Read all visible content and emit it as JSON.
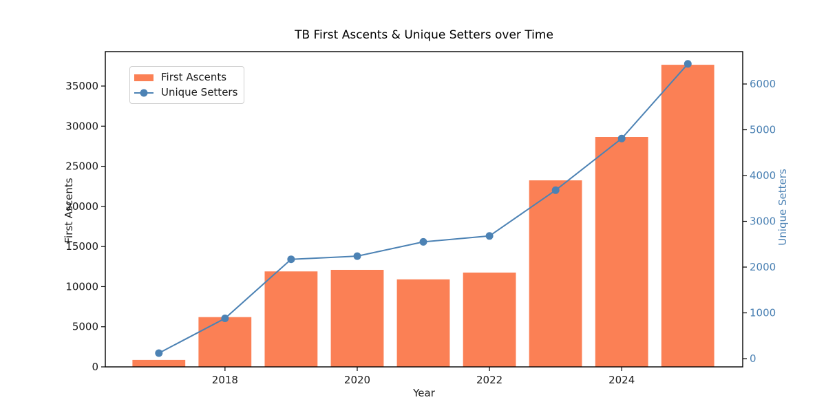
{
  "chart_data": {
    "type": "bar+line",
    "title": "TB First Ascents & Unique Setters over Time",
    "xlabel": "Year",
    "categories": [
      2017,
      2018,
      2019,
      2020,
      2021,
      2022,
      2023,
      2024,
      2025
    ],
    "series": [
      {
        "name": "First Ascents",
        "type": "bar",
        "axis": "left",
        "color": "#FB8055",
        "values": [
          870,
          6200,
          11900,
          12100,
          10900,
          11750,
          23250,
          28650,
          37650
        ]
      },
      {
        "name": "Unique Setters",
        "type": "line",
        "axis": "right",
        "color": "#4C82B4",
        "marker": "circle",
        "values": [
          120,
          880,
          2170,
          2240,
          2550,
          2680,
          3680,
          4810,
          6440
        ]
      }
    ],
    "x_ticks": [
      2018,
      2020,
      2022,
      2024
    ],
    "xlim": [
      2016.19,
      2025.83
    ],
    "bar_width": 0.8,
    "left_axis": {
      "label": "First Ascents",
      "ticks": [
        0,
        5000,
        10000,
        15000,
        20000,
        25000,
        30000,
        35000
      ],
      "lim": [
        0,
        39290
      ],
      "color": "#1a1a1a"
    },
    "right_axis": {
      "label": "Unique Setters",
      "ticks": [
        0,
        1000,
        2000,
        3000,
        4000,
        5000,
        6000
      ],
      "lim": [
        -180,
        6707
      ],
      "color": "#4C82B4"
    },
    "grid": false,
    "legend_position": "upper left",
    "spine_color": "#000000"
  }
}
